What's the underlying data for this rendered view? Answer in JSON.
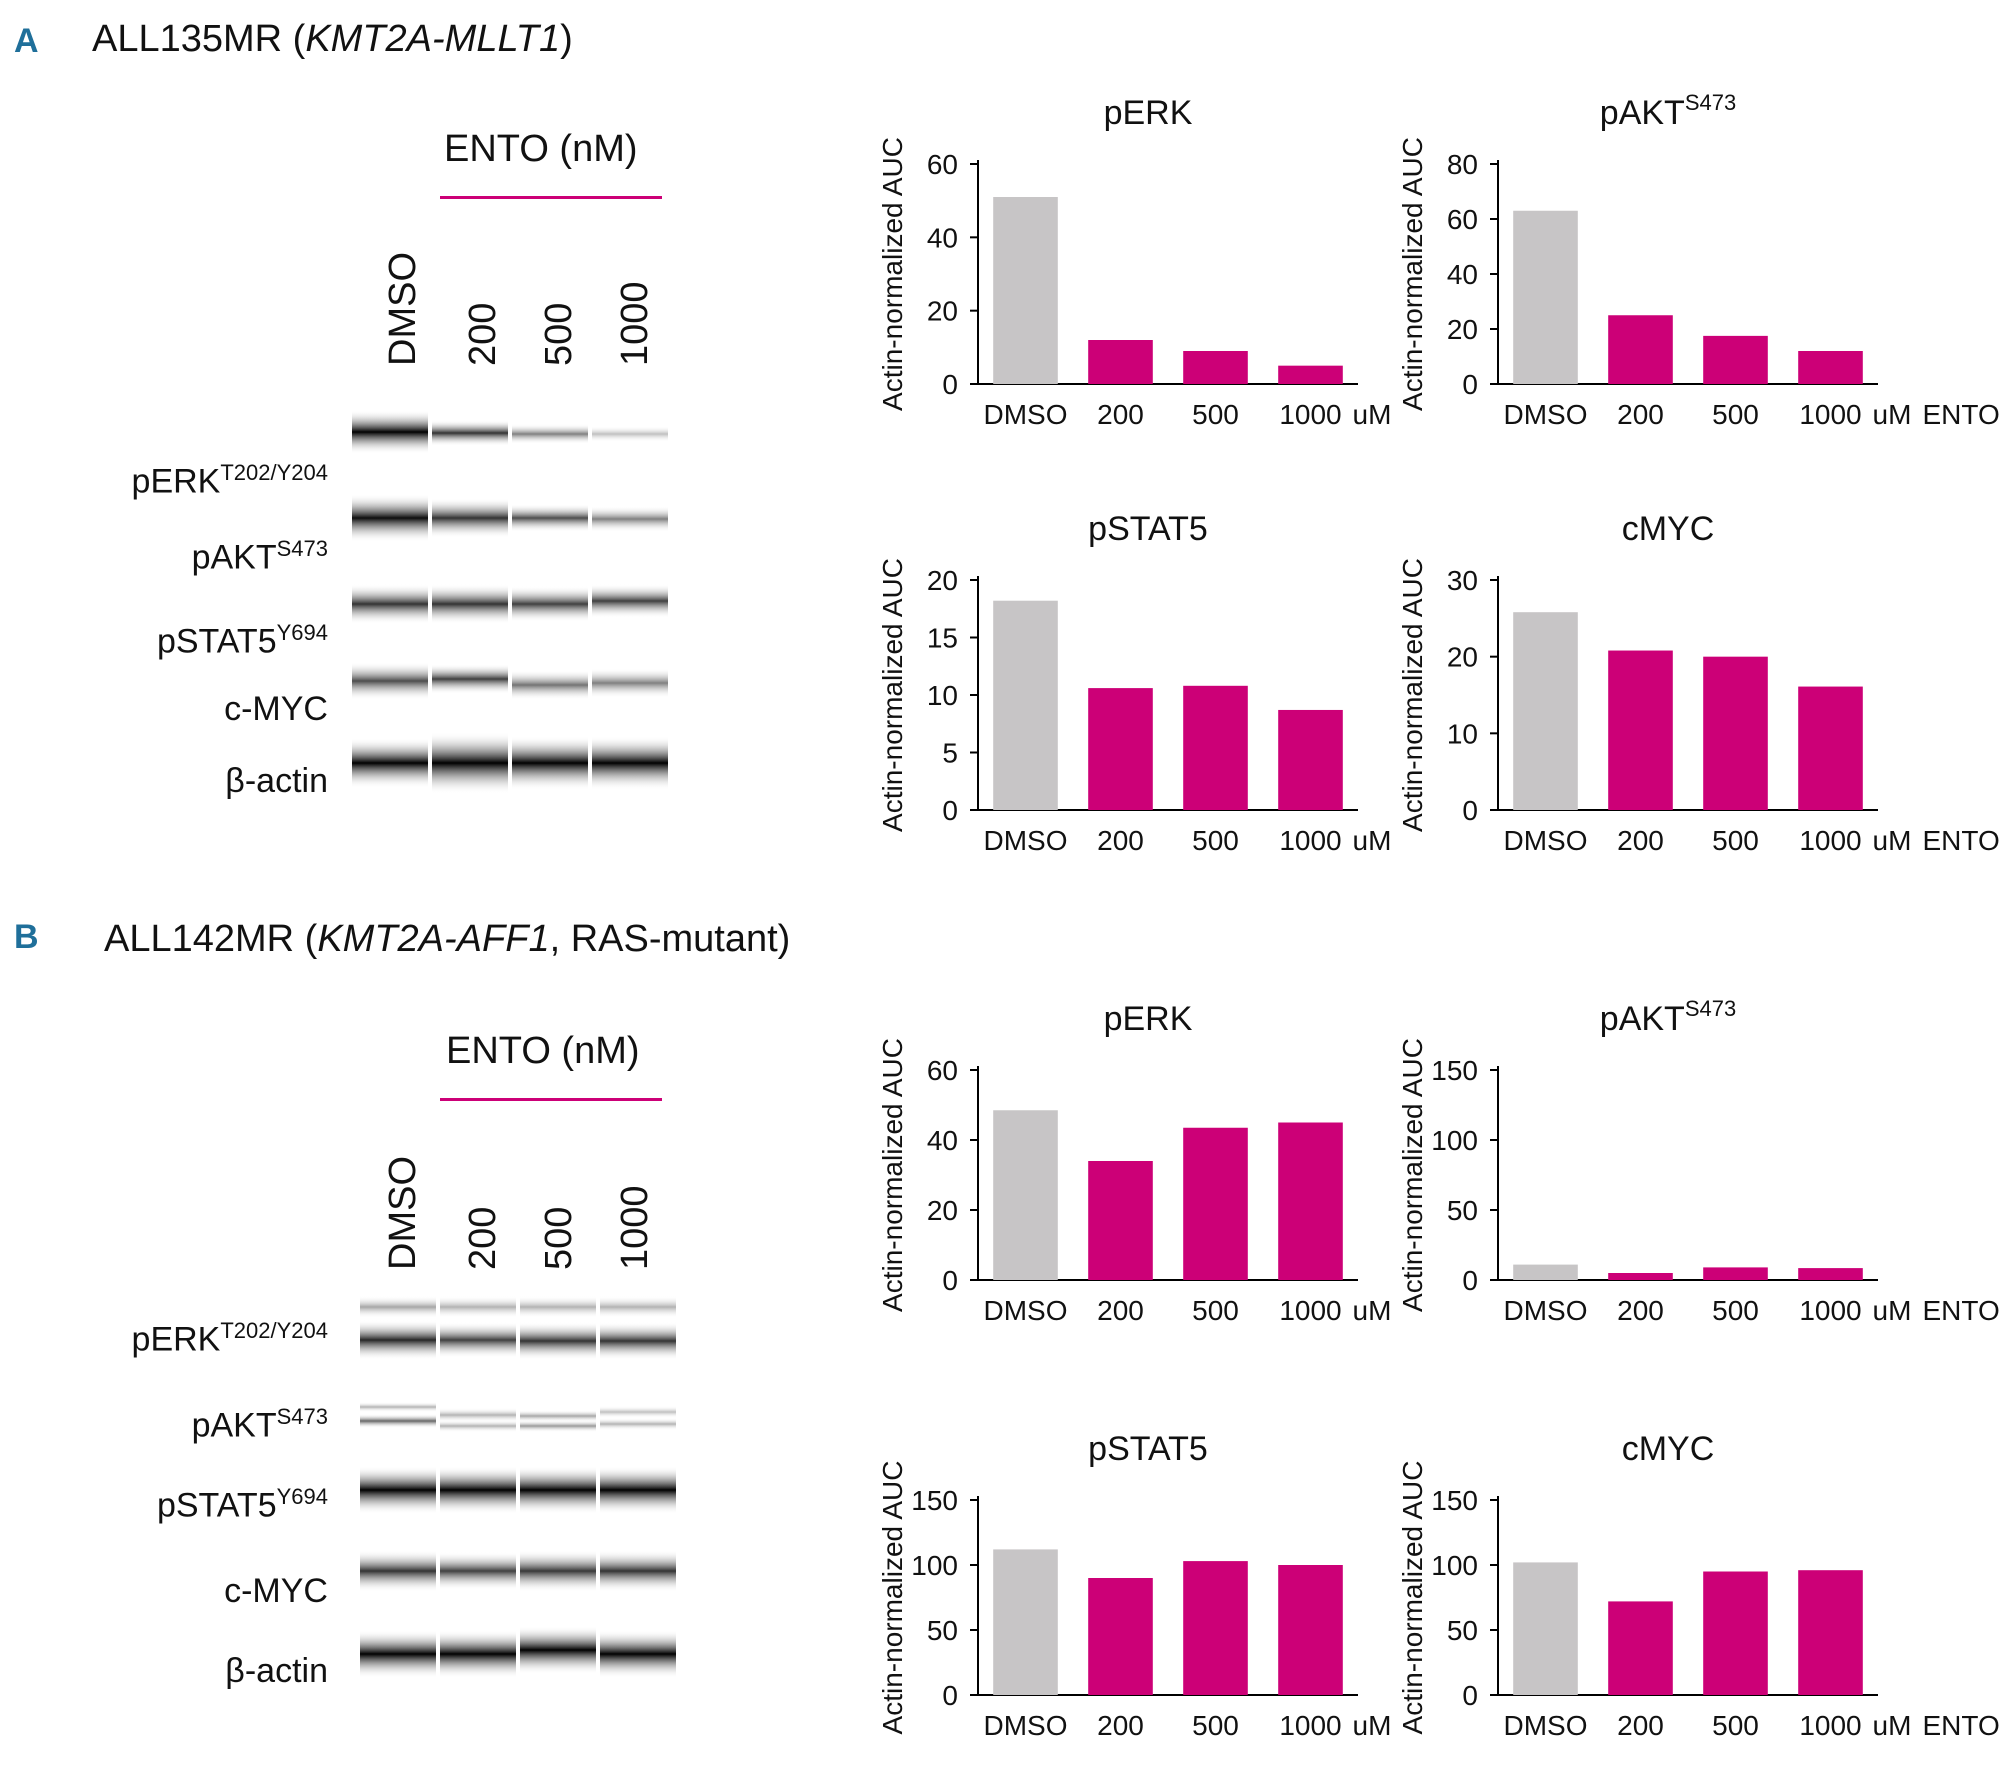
{
  "colors": {
    "dmso": "#c7c5c6",
    "ento": "#cc0077",
    "panel_letter": "#1f6f9a",
    "ento_line": "#cc0077"
  },
  "panels": [
    {
      "letter": "A",
      "title": {
        "prefix": "ALL135MR (",
        "gene": "KMT2A-MLLT1",
        "suffix": ")"
      },
      "blot": {
        "ento_label": "ENTO (nM)",
        "lanes": [
          "DMSO",
          "200",
          "500",
          "1000"
        ],
        "proteins": [
          {
            "name": "pERK",
            "sup": "T202/Y204"
          },
          {
            "name": "pAKT",
            "sup": "S473"
          },
          {
            "name": "pSTAT5",
            "sup": "Y694"
          },
          {
            "name": "c-MYC",
            "sup": ""
          },
          {
            "name": "β-actin",
            "sup": ""
          }
        ]
      }
    },
    {
      "letter": "B",
      "title": {
        "prefix": "ALL142MR (",
        "gene": "KMT2A-AFF1",
        "suffix": ", RAS-mutant)"
      },
      "blot": {
        "ento_label": "ENTO (nM)",
        "lanes": [
          "DMSO",
          "200",
          "500",
          "1000"
        ],
        "proteins": [
          {
            "name": "pERK",
            "sup": "T202/Y204"
          },
          {
            "name": "pAKT",
            "sup": "S473"
          },
          {
            "name": "pSTAT5",
            "sup": "Y694"
          },
          {
            "name": "c-MYC",
            "sup": ""
          },
          {
            "name": "β-actin",
            "sup": ""
          }
        ]
      }
    }
  ],
  "chart_data": [
    {
      "panel": "A",
      "type": "bar",
      "title": "pERK",
      "title_sup": "",
      "ylabel": "Actin-normalized AUC",
      "categories": [
        "DMSO",
        "200",
        "500",
        "1000"
      ],
      "unit_label": "uM",
      "trailing_label": "",
      "values": [
        51,
        12,
        9,
        5
      ],
      "ylim": [
        0,
        60
      ],
      "yticks": [
        0,
        20,
        40,
        60
      ]
    },
    {
      "panel": "A",
      "type": "bar",
      "title": "pAKT",
      "title_sup": "S473",
      "ylabel": "Actin-normalized AUC",
      "categories": [
        "DMSO",
        "200",
        "500",
        "1000"
      ],
      "unit_label": "uM",
      "trailing_label": "ENTO",
      "values": [
        63,
        25,
        17.5,
        12
      ],
      "ylim": [
        0,
        80
      ],
      "yticks": [
        0,
        20,
        40,
        60,
        80
      ]
    },
    {
      "panel": "A",
      "type": "bar",
      "title": "pSTAT5",
      "title_sup": "",
      "ylabel": "Actin-normalized AUC",
      "categories": [
        "DMSO",
        "200",
        "500",
        "1000"
      ],
      "unit_label": "uM",
      "trailing_label": "",
      "values": [
        18.2,
        10.6,
        10.8,
        8.7
      ],
      "ylim": [
        0,
        20
      ],
      "yticks": [
        0,
        5,
        10,
        15,
        20
      ]
    },
    {
      "panel": "A",
      "type": "bar",
      "title": "cMYC",
      "title_sup": "",
      "ylabel": "Actin-normalized AUC",
      "categories": [
        "DMSO",
        "200",
        "500",
        "1000"
      ],
      "unit_label": "uM",
      "trailing_label": "ENTO",
      "values": [
        25.8,
        20.8,
        20,
        16.1
      ],
      "ylim": [
        0,
        30
      ],
      "yticks": [
        0,
        10,
        20,
        30
      ]
    },
    {
      "panel": "B",
      "type": "bar",
      "title": "pERK",
      "title_sup": "",
      "ylabel": "Actin-normalized AUC",
      "categories": [
        "DMSO",
        "200",
        "500",
        "1000"
      ],
      "unit_label": "uM",
      "trailing_label": "",
      "values": [
        48.5,
        34,
        43.5,
        45
      ],
      "ylim": [
        0,
        60
      ],
      "yticks": [
        0,
        20,
        40,
        60
      ]
    },
    {
      "panel": "B",
      "type": "bar",
      "title": "pAKT",
      "title_sup": "S473",
      "ylabel": "Actin-normalized AUC",
      "categories": [
        "DMSO",
        "200",
        "500",
        "1000"
      ],
      "unit_label": "uM",
      "trailing_label": "ENTO",
      "values": [
        11,
        5,
        9,
        8.5
      ],
      "ylim": [
        0,
        150
      ],
      "yticks": [
        0,
        50,
        100,
        150
      ]
    },
    {
      "panel": "B",
      "type": "bar",
      "title": "pSTAT5",
      "title_sup": "",
      "ylabel": "Actin-normalized AUC",
      "categories": [
        "DMSO",
        "200",
        "500",
        "1000"
      ],
      "unit_label": "uM",
      "trailing_label": "",
      "values": [
        112,
        90,
        103,
        100
      ],
      "ylim": [
        0,
        150
      ],
      "yticks": [
        0,
        50,
        100,
        150
      ]
    },
    {
      "panel": "B",
      "type": "bar",
      "title": "cMYC",
      "title_sup": "",
      "ylabel": "Actin-normalized AUC",
      "categories": [
        "DMSO",
        "200",
        "500",
        "1000"
      ],
      "unit_label": "uM",
      "trailing_label": "ENTO",
      "values": [
        102,
        72,
        95,
        96
      ],
      "ylim": [
        0,
        150
      ],
      "yticks": [
        0,
        50,
        100,
        150
      ]
    }
  ]
}
